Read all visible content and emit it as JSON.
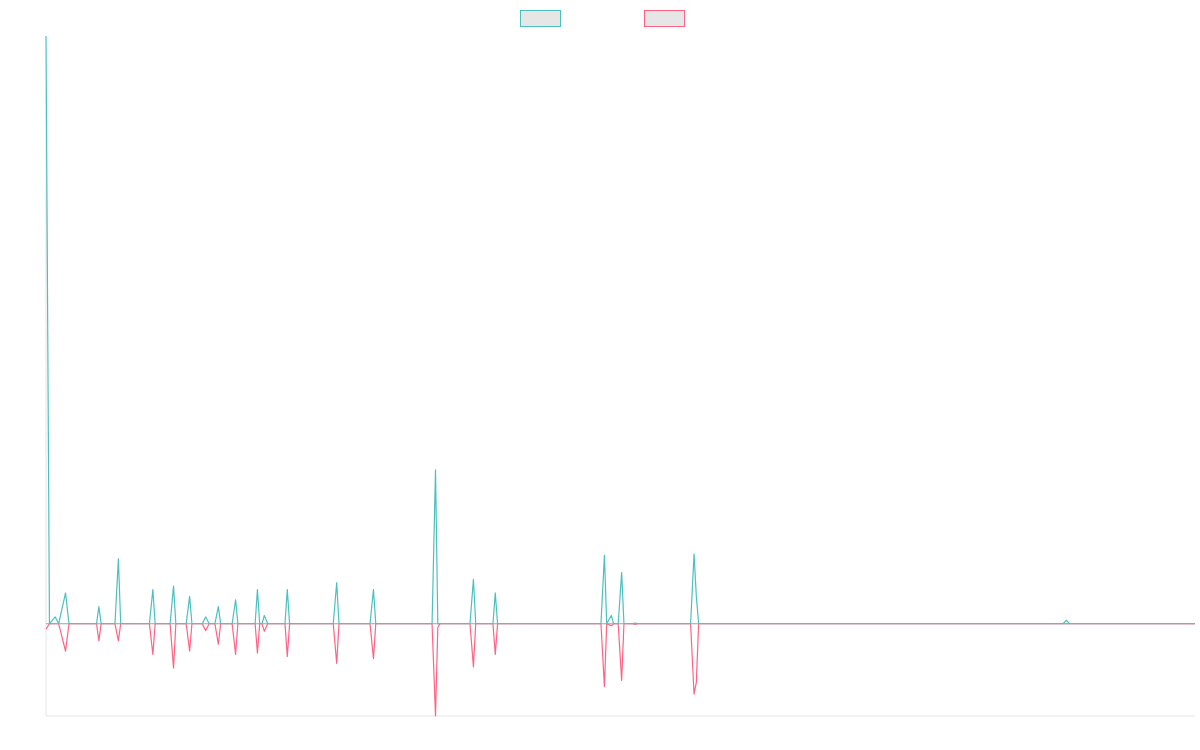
{
  "chart_data": {
    "type": "line",
    "title": "",
    "xlabel": "",
    "ylabel": "",
    "legend_position": "top-center",
    "grid": false,
    "ylim": [
      -13.5,
      86
    ],
    "xlim": [
      0,
      1000
    ],
    "series": [
      {
        "color": "#4bc0c0",
        "fill": "#e6e6e6",
        "points": [
          [
            0,
            86
          ],
          [
            3,
            0
          ],
          [
            8,
            1
          ],
          [
            11,
            0
          ],
          [
            17,
            4.5
          ],
          [
            20,
            0
          ],
          [
            25,
            0
          ],
          [
            27,
            0
          ],
          [
            44,
            0
          ],
          [
            46,
            2.5
          ],
          [
            48,
            0
          ],
          [
            60,
            0
          ],
          [
            63,
            9.5
          ],
          [
            65,
            0
          ],
          [
            90,
            0
          ],
          [
            93,
            5
          ],
          [
            95,
            0
          ],
          [
            108,
            0
          ],
          [
            111,
            5.5
          ],
          [
            113,
            0
          ],
          [
            122,
            0
          ],
          [
            125,
            4
          ],
          [
            127,
            0
          ],
          [
            136,
            0
          ],
          [
            139,
            1
          ],
          [
            142,
            0
          ],
          [
            147,
            0
          ],
          [
            150,
            2.5
          ],
          [
            152,
            0
          ],
          [
            162,
            0
          ],
          [
            165,
            3.5
          ],
          [
            167,
            0
          ],
          [
            182,
            0
          ],
          [
            184,
            5
          ],
          [
            186,
            0
          ],
          [
            188,
            0
          ],
          [
            190,
            1.2
          ],
          [
            193,
            0
          ],
          [
            208,
            0
          ],
          [
            210,
            5
          ],
          [
            212,
            0
          ],
          [
            250,
            0
          ],
          [
            253,
            6
          ],
          [
            255,
            0
          ],
          [
            282,
            0
          ],
          [
            285,
            5
          ],
          [
            287,
            0
          ],
          [
            336,
            0
          ],
          [
            339,
            22.5
          ],
          [
            341,
            0
          ],
          [
            369,
            0
          ],
          [
            372,
            6.5
          ],
          [
            374,
            0
          ],
          [
            389,
            0
          ],
          [
            391,
            4.5
          ],
          [
            393,
            0
          ],
          [
            483,
            0
          ],
          [
            486,
            10
          ],
          [
            488,
            0
          ],
          [
            492,
            1.2
          ],
          [
            494,
            0
          ],
          [
            498,
            0
          ],
          [
            501,
            7.5
          ],
          [
            503,
            0
          ],
          [
            510,
            0
          ],
          [
            513,
            0.1
          ],
          [
            515,
            0
          ],
          [
            561,
            0
          ],
          [
            564,
            10.2
          ],
          [
            566,
            4
          ],
          [
            568,
            0
          ],
          [
            885,
            0
          ],
          [
            888,
            0.5
          ],
          [
            891,
            0
          ],
          [
            1000,
            0
          ]
        ]
      },
      {
        "color": "#ff6384",
        "fill": "#e6e6e6",
        "points": [
          [
            0,
            -0.8
          ],
          [
            3,
            0
          ],
          [
            11,
            0
          ],
          [
            17,
            -4
          ],
          [
            20,
            0
          ],
          [
            27,
            0
          ],
          [
            44,
            0
          ],
          [
            46,
            -2.5
          ],
          [
            48,
            0
          ],
          [
            60,
            0
          ],
          [
            63,
            -2.5
          ],
          [
            65,
            0
          ],
          [
            90,
            0
          ],
          [
            93,
            -4.5
          ],
          [
            95,
            0
          ],
          [
            108,
            0
          ],
          [
            111,
            -6.5
          ],
          [
            113,
            0
          ],
          [
            122,
            0
          ],
          [
            125,
            -4
          ],
          [
            127,
            0
          ],
          [
            136,
            0
          ],
          [
            139,
            -1
          ],
          [
            142,
            0
          ],
          [
            147,
            0
          ],
          [
            150,
            -3
          ],
          [
            152,
            0
          ],
          [
            162,
            0
          ],
          [
            165,
            -4.5
          ],
          [
            167,
            0
          ],
          [
            182,
            0
          ],
          [
            184,
            -4.3
          ],
          [
            186,
            0
          ],
          [
            188,
            0
          ],
          [
            190,
            -1.1
          ],
          [
            193,
            0
          ],
          [
            208,
            0
          ],
          [
            210,
            -4.8
          ],
          [
            212,
            0
          ],
          [
            250,
            0
          ],
          [
            253,
            -5.8
          ],
          [
            255,
            0
          ],
          [
            282,
            0
          ],
          [
            285,
            -5.1
          ],
          [
            287,
            0
          ],
          [
            336,
            0
          ],
          [
            339,
            -13.5
          ],
          [
            341,
            -0.5
          ],
          [
            343,
            0
          ],
          [
            369,
            0
          ],
          [
            372,
            -6.3
          ],
          [
            374,
            0
          ],
          [
            389,
            0
          ],
          [
            391,
            -4.5
          ],
          [
            393,
            0
          ],
          [
            483,
            0
          ],
          [
            486,
            -9.2
          ],
          [
            488,
            0
          ],
          [
            492,
            -0.3
          ],
          [
            494,
            0
          ],
          [
            498,
            0
          ],
          [
            501,
            -8.3
          ],
          [
            503,
            0
          ],
          [
            510,
            0
          ],
          [
            513,
            -0.1
          ],
          [
            515,
            0
          ],
          [
            561,
            0
          ],
          [
            564,
            -10.3
          ],
          [
            566,
            -8.6
          ],
          [
            568,
            0
          ],
          [
            885,
            0
          ],
          [
            1000,
            0
          ]
        ]
      }
    ]
  }
}
